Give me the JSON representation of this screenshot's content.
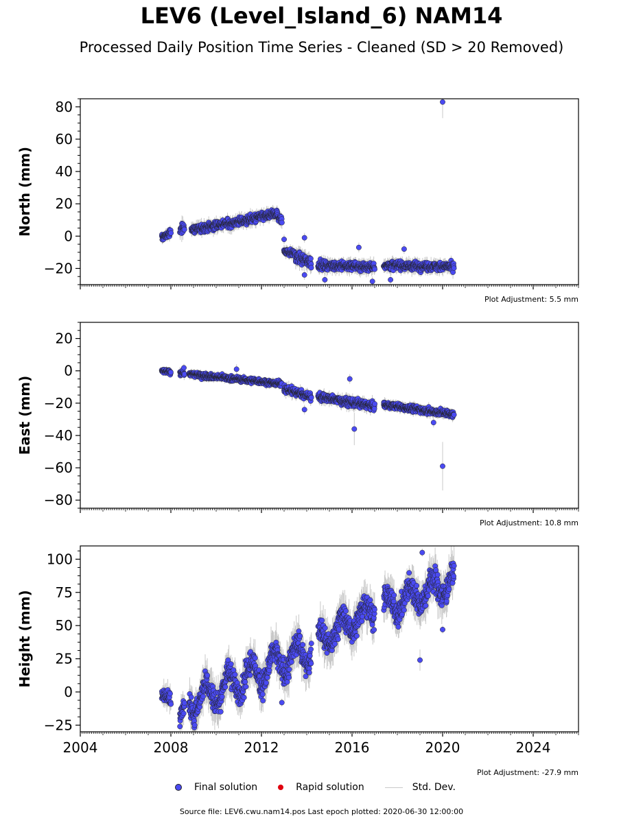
{
  "title": "LEV6 (Level_Island_6) NAM14",
  "subtitle": "Processed Daily Position Time Series - Cleaned (SD > 20 Removed)",
  "legend": {
    "final": "Final solution",
    "rapid": "Rapid solution",
    "std": "Std. Dev."
  },
  "footer": "Source file: LEV6.cwu.nam14.pos  Last epoch plotted: 2020-06-30 12:00:00",
  "colors": {
    "final": "#4a4af2",
    "rapid": "#e0000e",
    "std": "#c8c8c8",
    "edge": "#222222"
  },
  "chart_data": [
    {
      "type": "scatter",
      "ylabel": "North (mm)",
      "xlim": [
        2004,
        2026
      ],
      "ylim": [
        -30,
        85
      ],
      "yticks": [
        -20,
        0,
        20,
        40,
        60,
        80
      ],
      "ytick_labels": [
        "−20",
        "0",
        "20",
        "40",
        "60",
        "80"
      ],
      "adjustment": "Plot Adjustment: 5.5 mm",
      "segments": [
        {
          "x": [
            2007.6,
            2008.0
          ],
          "y": [
            -1,
            2
          ],
          "noise": 1.5
        },
        {
          "x": [
            2008.4,
            2008.6
          ],
          "y": [
            4,
            6
          ],
          "noise": 2.5
        },
        {
          "x": [
            2008.9,
            2011.0
          ],
          "y": [
            4,
            9
          ],
          "noise": 2.0
        },
        {
          "x": [
            2011.0,
            2012.7
          ],
          "y": [
            9,
            14
          ],
          "noise": 2.0
        },
        {
          "x": [
            2012.7,
            2012.9
          ],
          "y": [
            12,
            10
          ],
          "noise": 2.0
        },
        {
          "x": [
            2013.0,
            2013.5
          ],
          "y": [
            -9,
            -11
          ],
          "noise": 1.5
        },
        {
          "x": [
            2013.5,
            2014.2
          ],
          "y": [
            -13,
            -16
          ],
          "noise": 2.5
        },
        {
          "x": [
            2014.5,
            2017.0
          ],
          "y": [
            -18,
            -19
          ],
          "noise": 2.0
        },
        {
          "x": [
            2017.4,
            2020.5
          ],
          "y": [
            -18,
            -19
          ],
          "noise": 2.0
        }
      ],
      "outliers": [
        {
          "x": 2020.0,
          "y": 83,
          "err": 10
        },
        {
          "x": 2013.9,
          "y": -1
        },
        {
          "x": 2013.0,
          "y": -2
        },
        {
          "x": 2016.3,
          "y": -7
        },
        {
          "x": 2016.9,
          "y": -28
        },
        {
          "x": 2017.7,
          "y": -27
        },
        {
          "x": 2018.3,
          "y": -8
        },
        {
          "x": 2013.9,
          "y": -24
        },
        {
          "x": 2014.8,
          "y": -27
        }
      ]
    },
    {
      "type": "scatter",
      "ylabel": "East (mm)",
      "xlim": [
        2004,
        2026
      ],
      "ylim": [
        -85,
        30
      ],
      "yticks": [
        -80,
        -60,
        -40,
        -20,
        0,
        20
      ],
      "ytick_labels": [
        "−80",
        "−60",
        "−40",
        "−20",
        "0",
        "20"
      ],
      "adjustment": "Plot Adjustment: 10.8 mm",
      "segments": [
        {
          "x": [
            2007.6,
            2008.0
          ],
          "y": [
            0,
            -1
          ],
          "noise": 1.0
        },
        {
          "x": [
            2008.4,
            2008.6
          ],
          "y": [
            -1,
            -1
          ],
          "noise": 1.5
        },
        {
          "x": [
            2008.8,
            2012.9
          ],
          "y": [
            -2,
            -8
          ],
          "noise": 1.2
        },
        {
          "x": [
            2013.0,
            2014.2
          ],
          "y": [
            -11,
            -16
          ],
          "noise": 1.8
        },
        {
          "x": [
            2014.5,
            2017.0
          ],
          "y": [
            -16,
            -22
          ],
          "noise": 1.8
        },
        {
          "x": [
            2017.4,
            2020.5
          ],
          "y": [
            -21,
            -27
          ],
          "noise": 1.5
        }
      ],
      "outliers": [
        {
          "x": 2020.0,
          "y": -59,
          "err": 15
        },
        {
          "x": 2016.1,
          "y": -36,
          "err": 10
        },
        {
          "x": 2015.9,
          "y": -5
        },
        {
          "x": 2013.9,
          "y": -24
        },
        {
          "x": 2019.6,
          "y": -32
        },
        {
          "x": 2010.9,
          "y": 1
        }
      ]
    },
    {
      "type": "scatter",
      "ylabel": "Height (mm)",
      "xlim": [
        2004,
        2026
      ],
      "ylim": [
        -30,
        110
      ],
      "yticks": [
        -25,
        0,
        25,
        50,
        75,
        100
      ],
      "ytick_labels": [
        "−25",
        "0",
        "25",
        "50",
        "75",
        "100"
      ],
      "xticks": [
        2004,
        2008,
        2012,
        2016,
        2020,
        2024
      ],
      "xtick_labels": [
        "2004",
        "2008",
        "2012",
        "2016",
        "2020",
        "2024"
      ],
      "adjustment": "Plot Adjustment: -27.9 mm",
      "segments": [
        {
          "x": [
            2007.6,
            2008.0
          ],
          "y": [
            -2,
            -5
          ],
          "noise": 4
        },
        {
          "x": [
            2008.4,
            2008.6
          ],
          "y": [
            -18,
            -12
          ],
          "noise": 5
        },
        {
          "x": [
            2008.8,
            2014.2
          ],
          "y": [
            -8,
            32
          ],
          "noise": 7,
          "seasonal": 10
        },
        {
          "x": [
            2014.5,
            2017.0
          ],
          "y": [
            38,
            63
          ],
          "noise": 7,
          "seasonal": 8
        },
        {
          "x": [
            2017.4,
            2020.5
          ],
          "y": [
            63,
            84
          ],
          "noise": 7,
          "seasonal": 8
        }
      ],
      "outliers": [
        {
          "x": 2019.0,
          "y": 24,
          "err": 8
        },
        {
          "x": 2008.4,
          "y": -26
        },
        {
          "x": 2012.9,
          "y": -8
        },
        {
          "x": 2019.1,
          "y": 105
        },
        {
          "x": 2020.0,
          "y": 47
        }
      ]
    }
  ]
}
